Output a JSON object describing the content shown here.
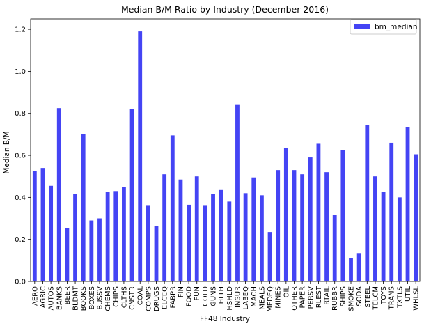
{
  "chart_data": {
    "type": "bar",
    "title": "Median B/M Ratio by Industry (December 2016)",
    "xlabel": "FF48 Industry",
    "ylabel": "Median B/M",
    "ylim": [
      0,
      1.25
    ],
    "yticks": [
      "0.0",
      "0.2",
      "0.4",
      "0.6",
      "0.8",
      "1.0",
      "1.2"
    ],
    "grid": false,
    "legend_position": "top-right",
    "bar_color": "#4444f4",
    "categories": [
      "AERO",
      "AGRIC",
      "AUTOS",
      "BANKS",
      "BEER",
      "BLDMT",
      "BOOKS",
      "BOXES",
      "BUSSV",
      "CHEMS",
      "CHIPS",
      "CLTHS",
      "CNSTR",
      "COAL",
      "COMPS",
      "DRUGS",
      "ELCEQ",
      "FABPR",
      "FIN",
      "FOOD",
      "FUN",
      "GOLD",
      "GUNS",
      "HLTH",
      "HSHLD",
      "INSUR",
      "LABEQ",
      "MACH",
      "MEALS",
      "MEDEQ",
      "MINES",
      "OIL",
      "OTHER",
      "PAPER",
      "PERSV",
      "RLEST",
      "RTAIL",
      "RUBBR",
      "SHIPS",
      "SMOKE",
      "SODA",
      "STEEL",
      "TELCM",
      "TOYS",
      "TRANS",
      "TXTLS",
      "UTIL",
      "WHLSL"
    ],
    "series": [
      {
        "name": "bm_median",
        "values": [
          0.525,
          0.54,
          0.455,
          0.825,
          0.255,
          0.415,
          0.7,
          0.29,
          0.3,
          0.425,
          0.43,
          0.45,
          0.82,
          1.19,
          0.36,
          0.265,
          0.51,
          0.695,
          0.485,
          0.365,
          0.5,
          0.36,
          0.415,
          0.435,
          0.38,
          0.84,
          0.42,
          0.495,
          0.41,
          0.235,
          0.53,
          0.635,
          0.53,
          0.51,
          0.59,
          0.655,
          0.52,
          0.315,
          0.625,
          0.11,
          0.135,
          0.745,
          0.5,
          0.425,
          0.66,
          0.4,
          0.735,
          0.605
        ]
      }
    ]
  }
}
